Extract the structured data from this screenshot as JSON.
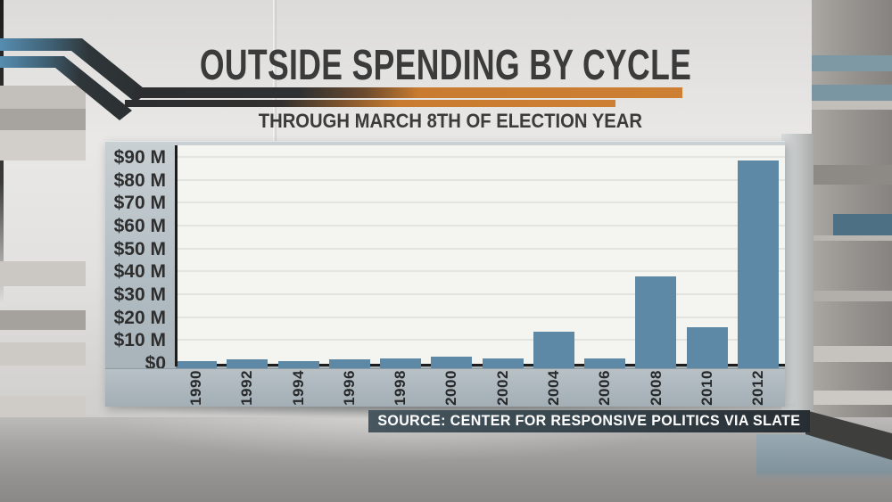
{
  "header": {
    "title": "OUTSIDE SPENDING BY CYCLE",
    "subtitle": "THROUGH MARCH 8TH OF ELECTION YEAR"
  },
  "source_bar": {
    "label": "SOURCE: CENTER FOR RESPONSIVE POLITICS VIA SLATE"
  },
  "chart_data": {
    "type": "bar",
    "title": "OUTSIDE SPENDING BY CYCLE",
    "subtitle": "THROUGH MARCH 8TH OF ELECTION YEAR",
    "unit": "millions of USD",
    "categories": [
      "1990",
      "1992",
      "1994",
      "1996",
      "1998",
      "2000",
      "2002",
      "2004",
      "2006",
      "2008",
      "2010",
      "2012"
    ],
    "values": [
      1.2,
      2,
      1.1,
      2,
      2.3,
      3.2,
      2.2,
      14,
      2.3,
      38,
      16,
      89
    ],
    "yticks": [
      {
        "label": "$90 M",
        "value": 90
      },
      {
        "label": "$80 M",
        "value": 80
      },
      {
        "label": "$70 M",
        "value": 70
      },
      {
        "label": "$60 M",
        "value": 60
      },
      {
        "label": "$50 M",
        "value": 50
      },
      {
        "label": "$40 M",
        "value": 40
      },
      {
        "label": "$30 M",
        "value": 30
      },
      {
        "label": "$20 M",
        "value": 20
      },
      {
        "label": "$10 M",
        "value": 10
      },
      {
        "label": "$0",
        "value": 0
      }
    ],
    "ylim": [
      0,
      95
    ],
    "grid": true,
    "legend": false,
    "bar_color": "#5d89a7",
    "source": "SOURCE: CENTER FOR RESPONSIVE POLITICS VIA SLATE"
  },
  "colors": {
    "accent_orange": "#c97c2f",
    "bar_blue": "#5d89a7",
    "panel_blue_gray": "#b4bfc5",
    "source_bar_bg": "#3a4850",
    "title_text": "#3b3b3b",
    "swoosh_blue": "#568db0",
    "axis_dark": "#1d1d1d"
  }
}
